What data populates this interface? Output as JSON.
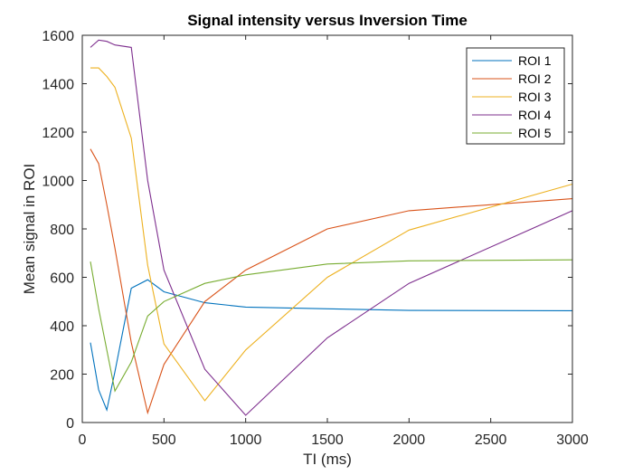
{
  "chart_data": {
    "type": "line",
    "title": "Signal intensity versus Inversion Time",
    "xlabel": "TI (ms)",
    "ylabel": "Mean signal in ROI",
    "xlim": [
      0,
      3000
    ],
    "ylim": [
      0,
      1600
    ],
    "xticks": [
      0,
      500,
      1000,
      1500,
      2000,
      2500,
      3000
    ],
    "yticks": [
      0,
      200,
      400,
      600,
      800,
      1000,
      1200,
      1400,
      1600
    ],
    "grid": false,
    "legend_position": "top-right",
    "series": [
      {
        "name": "ROI 1",
        "color": "#0072BD",
        "x": [
          50,
          100,
          150,
          200,
          300,
          400,
          500,
          750,
          1000,
          1500,
          2000,
          3000
        ],
        "y": [
          330,
          135,
          52,
          210,
          555,
          590,
          540,
          495,
          477,
          470,
          463,
          462
        ]
      },
      {
        "name": "ROI 2",
        "color": "#D95319",
        "x": [
          50,
          100,
          150,
          200,
          300,
          400,
          500,
          750,
          1000,
          1500,
          2000,
          3000
        ],
        "y": [
          1130,
          1070,
          900,
          720,
          330,
          40,
          240,
          500,
          630,
          800,
          875,
          925
        ]
      },
      {
        "name": "ROI 3",
        "color": "#EDB120",
        "x": [
          50,
          100,
          150,
          200,
          300,
          400,
          500,
          750,
          1000,
          1500,
          2000,
          3000
        ],
        "y": [
          1465,
          1465,
          1430,
          1385,
          1175,
          650,
          325,
          90,
          300,
          600,
          795,
          985
        ]
      },
      {
        "name": "ROI 4",
        "color": "#7E2F8E",
        "x": [
          50,
          100,
          150,
          200,
          300,
          400,
          500,
          750,
          1000,
          1500,
          2000,
          3000
        ],
        "y": [
          1550,
          1580,
          1575,
          1560,
          1550,
          1000,
          630,
          220,
          30,
          350,
          575,
          875
        ]
      },
      {
        "name": "ROI 5",
        "color": "#77AC30",
        "x": [
          50,
          100,
          150,
          200,
          300,
          400,
          500,
          750,
          1000,
          1500,
          2000,
          3000
        ],
        "y": [
          665,
          470,
          300,
          130,
          250,
          440,
          500,
          575,
          610,
          655,
          668,
          672
        ]
      }
    ]
  }
}
